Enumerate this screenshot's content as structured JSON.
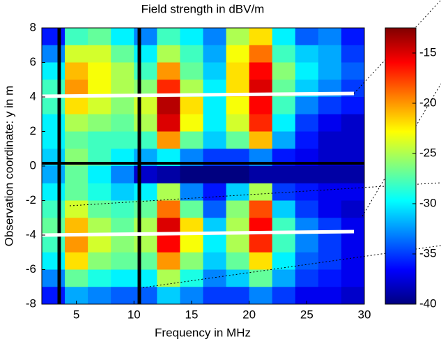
{
  "chart_data": {
    "type": "heatmap",
    "title": "Field strength in dBV/m",
    "x_label": "Frequency in MHz",
    "y_label": "Observation coordinate: y in m",
    "x": [
      3,
      5,
      7,
      9,
      11,
      13,
      15,
      17,
      19,
      21,
      23,
      25,
      27,
      29
    ],
    "y": [
      7.5,
      6.5,
      5.5,
      4.5,
      3.5,
      2.5,
      1.5,
      0.5,
      -0.5,
      -1.5,
      -2.5,
      -3.5,
      -4.5,
      -5.5,
      -6.5,
      -7.5
    ],
    "z": [
      [
        -36,
        -28,
        -27,
        -30,
        -33,
        -28,
        -30,
        -33,
        -25,
        -22,
        -30,
        -34,
        -33,
        -36
      ],
      [
        -33,
        -24,
        -24,
        -27,
        -30,
        -25,
        -28,
        -32,
        -23,
        -19,
        -28,
        -31,
        -32,
        -35
      ],
      [
        -30,
        -21,
        -23,
        -25,
        -28,
        -20,
        -27,
        -31,
        -22,
        -16,
        -26,
        -30,
        -32,
        -34
      ],
      [
        -28,
        -20,
        -23,
        -25,
        -26,
        -17,
        -25,
        -30,
        -22,
        -15,
        -27,
        -31,
        -33,
        -35
      ],
      [
        -28,
        -22,
        -24,
        -26,
        -24,
        -14,
        -22,
        -30,
        -23,
        -16,
        -28,
        -33,
        -35,
        -36
      ],
      [
        -30,
        -25,
        -26,
        -27,
        -25,
        -15,
        -23,
        -30,
        -24,
        -17,
        -30,
        -35,
        -37,
        -38
      ],
      [
        -30,
        -27,
        -28,
        -28,
        -28,
        -20,
        -27,
        -31,
        -27,
        -21,
        -32,
        -36,
        -38,
        -38
      ],
      [
        -31,
        -26,
        -28,
        -30,
        -32,
        -30,
        -33,
        -35,
        -35,
        -33,
        -36,
        -37,
        -38,
        -38
      ],
      [
        -32,
        -27,
        -30,
        -33,
        -38,
        -39,
        -40,
        -40,
        -40,
        -39,
        -39,
        -39,
        -39,
        -39
      ],
      [
        -30,
        -27,
        -29,
        -31,
        -30,
        -25,
        -33,
        -36,
        -31,
        -25,
        -35,
        -36,
        -37,
        -37
      ],
      [
        -28,
        -24,
        -27,
        -28,
        -27,
        -19,
        -27,
        -34,
        -26,
        -18,
        -31,
        -35,
        -37,
        -38
      ],
      [
        -27,
        -21,
        -25,
        -27,
        -25,
        -15,
        -22,
        -31,
        -25,
        -16,
        -28,
        -33,
        -35,
        -37
      ],
      [
        -28,
        -20,
        -24,
        -26,
        -25,
        -16,
        -23,
        -30,
        -25,
        -17,
        -28,
        -33,
        -35,
        -37
      ],
      [
        -30,
        -22,
        -26,
        -27,
        -27,
        -20,
        -26,
        -31,
        -27,
        -22,
        -30,
        -34,
        -35,
        -37
      ],
      [
        -33,
        -27,
        -29,
        -30,
        -30,
        -25,
        -29,
        -33,
        -31,
        -27,
        -32,
        -35,
        -36,
        -37
      ],
      [
        -36,
        -32,
        -33,
        -34,
        -34,
        -31,
        -33,
        -35,
        -35,
        -33,
        -35,
        -37,
        -37,
        -38
      ]
    ],
    "xlim": [
      2,
      30
    ],
    "ylim": [
      -8,
      8
    ],
    "xticks": [
      5,
      10,
      15,
      20,
      25,
      30
    ],
    "yticks": [
      -8,
      -6,
      -4,
      -2,
      0,
      2,
      4,
      6,
      8
    ],
    "clim": [
      -40,
      -12.5
    ],
    "cticks": [
      -40,
      -35,
      -30,
      -25,
      -20,
      -15
    ],
    "colormap": "jet"
  }
}
